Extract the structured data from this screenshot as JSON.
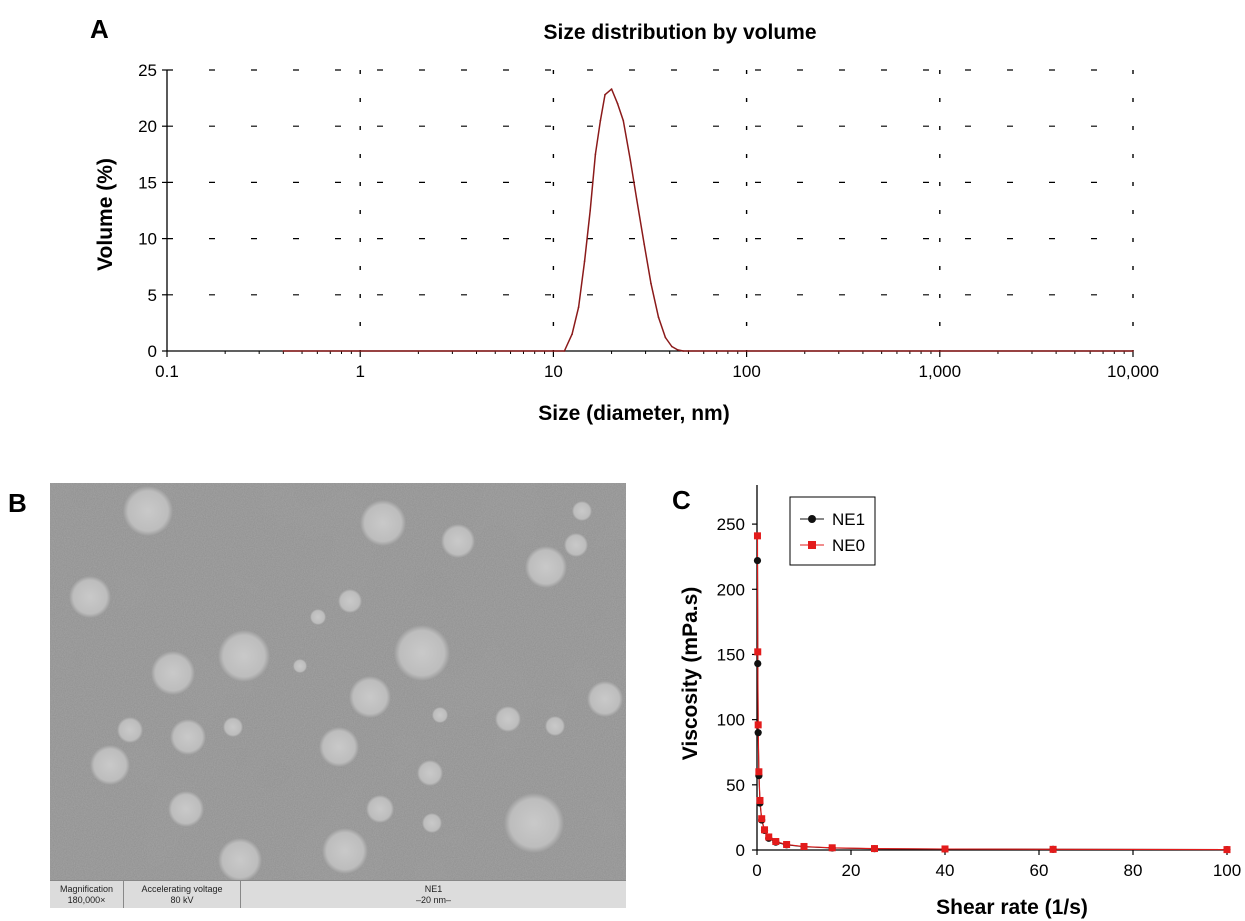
{
  "panel_labels": {
    "a": "A",
    "b": "B",
    "c": "C"
  },
  "chart_data": [
    {
      "type": "line",
      "title": "Size distribution by volume",
      "xlabel": "Size (diameter, nm)",
      "ylabel": "Volume (%)",
      "x_scale": "log",
      "xlim": [
        0.1,
        10000
      ],
      "ylim": [
        0,
        25
      ],
      "x_ticks": [
        0.1,
        1,
        10,
        100,
        1000,
        10000
      ],
      "x_tick_labels": [
        "0.1",
        "1",
        "10",
        "100",
        "1,000",
        "10,000"
      ],
      "y_ticks": [
        0,
        5,
        10,
        15,
        20,
        25
      ],
      "y_tick_labels": [
        "0",
        "5",
        "10",
        "15",
        "20",
        "25"
      ],
      "grid": true,
      "line_color": "#8b1a1a",
      "series": [
        {
          "x": [
            0.4,
            10.0,
            11.4,
            12.5,
            13.5,
            14.5,
            15.5,
            16.5,
            17.5,
            18.5,
            20.0,
            21.5,
            23.0,
            25.0,
            27.0,
            29.5,
            32.0,
            35.0,
            38.0,
            41.0,
            44.0,
            47.0,
            50.0,
            10000
          ],
          "y": [
            0,
            0,
            0,
            1.5,
            3.9,
            8.0,
            12.5,
            17.5,
            20.5,
            22.8,
            23.3,
            22.0,
            20.5,
            17.0,
            13.5,
            9.5,
            6.0,
            3.0,
            1.2,
            0.4,
            0.1,
            0,
            0,
            0
          ]
        }
      ]
    },
    {
      "type": "scatter",
      "xlabel": "Shear rate (1/s)",
      "ylabel": "Viscosity (mPa.s)",
      "xlim": [
        0,
        100
      ],
      "ylim": [
        0,
        280
      ],
      "x_ticks": [
        0,
        20,
        40,
        60,
        80,
        100
      ],
      "y_ticks": [
        0,
        50,
        100,
        150,
        200,
        250
      ],
      "legend_position": "top-left",
      "series": [
        {
          "name": "NE1",
          "color": "#111111",
          "marker": "circle",
          "x": [
            0.1,
            0.16,
            0.25,
            0.4,
            0.63,
            1.0,
            1.6,
            2.5,
            4.0,
            6.3,
            10,
            16,
            25,
            40,
            63,
            100
          ],
          "y": [
            222,
            143,
            90,
            57,
            36,
            23,
            15,
            9,
            6,
            4,
            2.5,
            1.5,
            1,
            0.7,
            0.5,
            0.3
          ]
        },
        {
          "name": "NE0",
          "color": "#e31b1b",
          "marker": "square",
          "x": [
            0.1,
            0.16,
            0.25,
            0.4,
            0.63,
            1.0,
            1.6,
            2.5,
            4.0,
            6.3,
            10,
            16,
            25,
            40,
            63,
            100
          ],
          "y": [
            241,
            152,
            96,
            60,
            38,
            24,
            15.5,
            10,
            6.5,
            4.2,
            2.7,
            1.7,
            1.1,
            0.8,
            0.5,
            0.3
          ]
        }
      ]
    }
  ],
  "tem_info": {
    "magnification_label": "Magnification",
    "magnification_value": "180,000×",
    "voltage_label": "Accelerating voltage",
    "voltage_value": "80 kV",
    "sample_label": "NE1",
    "scale_text": "–20 nm–"
  }
}
